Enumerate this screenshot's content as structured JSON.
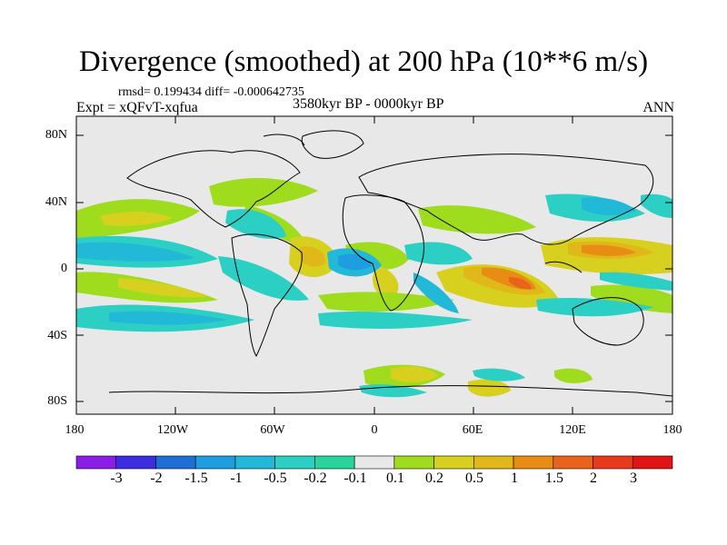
{
  "header": {
    "title": "Divergence (smoothed) at 200 hPa (10**6 m/s)",
    "stats": "rmsd= 0.199434 diff= -0.000642735",
    "expt": "Expt = xQFvT-xqfua",
    "period": "3580kyr BP - 0000kyr BP",
    "season": "ANN"
  },
  "axes": {
    "lat_labels": [
      "80N",
      "40N",
      "0",
      "40S",
      "80S"
    ],
    "lon_labels": [
      "180",
      "120W",
      "60W",
      "0",
      "60E",
      "120E",
      "180"
    ]
  },
  "colorbar": {
    "labels": [
      "-3",
      "-2",
      "-1.5",
      "-1",
      "-0.5",
      "-0.2",
      "-0.1",
      "0.1",
      "0.2",
      "0.5",
      "1",
      "1.5",
      "2",
      "3"
    ],
    "colors": [
      "#8a1ee6",
      "#3c2ee0",
      "#1e6ed6",
      "#1e9ee0",
      "#22b8d8",
      "#2ccfc4",
      "#28d49c",
      "#e8e8e8",
      "#a0dc1e",
      "#d8d01e",
      "#e0b81a",
      "#e88c14",
      "#e8641a",
      "#e83a1a",
      "#e01414"
    ]
  },
  "map": {
    "background_color": "#e8e8e8",
    "coast_color": "#000000"
  }
}
